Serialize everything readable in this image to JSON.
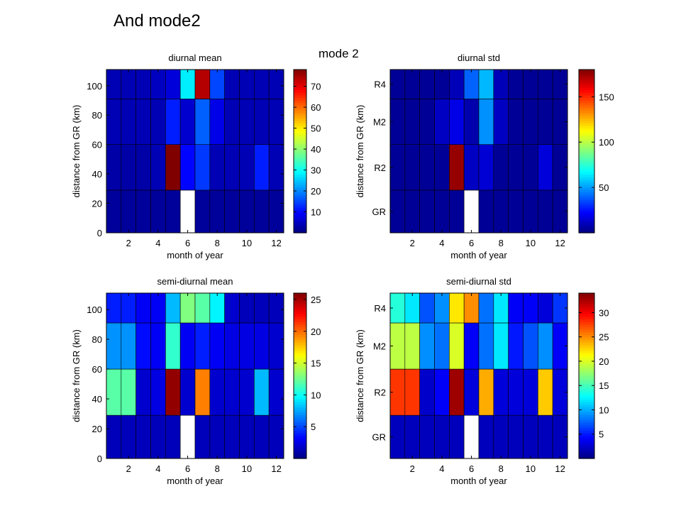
{
  "slide_title": "And mode2",
  "mode_label": "mode 2",
  "chart_data": [
    {
      "type": "heatmap",
      "title": "diurnal mean",
      "xlabel": "month of year",
      "ylabel": "distance from GR (km)",
      "x_ticks": [
        2,
        4,
        6,
        8,
        10,
        12
      ],
      "y_ticks": [
        "0",
        "20",
        "40",
        "60",
        "80",
        "100"
      ],
      "colorbar_ticks": [
        10,
        20,
        30,
        40,
        50,
        60,
        70
      ],
      "colorbar_range": [
        0,
        78
      ],
      "rows": [
        {
          "y0": 0,
          "y1": 29,
          "values": [
            2,
            2,
            2,
            2,
            2,
            null,
            2,
            2,
            2,
            2,
            2,
            2
          ]
        },
        {
          "y0": 29,
          "y1": 60,
          "values": [
            3,
            3,
            3,
            4,
            78,
            10,
            14,
            4,
            4,
            4,
            12,
            4
          ]
        },
        {
          "y0": 60,
          "y1": 91,
          "values": [
            4,
            4,
            4,
            4,
            12,
            6,
            17,
            8,
            4,
            4,
            4,
            4
          ]
        },
        {
          "y0": 91,
          "y1": 111,
          "values": [
            4,
            4,
            4,
            5,
            7,
            28,
            74,
            15,
            4,
            4,
            4,
            4
          ]
        }
      ]
    },
    {
      "type": "heatmap",
      "title": "diurnal std",
      "xlabel": "month of year",
      "ylabel": "distance from GR (km)",
      "x_ticks": [
        2,
        4,
        6,
        8,
        10,
        12
      ],
      "y_ticks": [
        "GR",
        "R2",
        "M2",
        "R4"
      ],
      "colorbar_ticks": [
        50,
        100,
        150
      ],
      "colorbar_range": [
        0,
        180
      ],
      "rows": [
        {
          "y0": 0,
          "y1": 29,
          "values": [
            4,
            4,
            4,
            4,
            4,
            null,
            4,
            4,
            4,
            4,
            4,
            4
          ]
        },
        {
          "y0": 29,
          "y1": 60,
          "values": [
            4,
            4,
            4,
            4,
            176,
            12,
            15,
            4,
            4,
            4,
            16,
            4
          ]
        },
        {
          "y0": 60,
          "y1": 91,
          "values": [
            4,
            4,
            4,
            12,
            18,
            8,
            48,
            12,
            4,
            4,
            4,
            4
          ]
        },
        {
          "y0": 91,
          "y1": 111,
          "values": [
            4,
            4,
            4,
            4,
            10,
            40,
            55,
            10,
            4,
            4,
            4,
            4
          ]
        }
      ]
    },
    {
      "type": "heatmap",
      "title": "semi-diurnal mean",
      "xlabel": "month of year",
      "ylabel": "distance from GR (km)",
      "x_ticks": [
        2,
        4,
        6,
        8,
        10,
        12
      ],
      "y_ticks": [
        "0",
        "20",
        "40",
        "60",
        "80",
        "100"
      ],
      "colorbar_ticks": [
        5,
        10,
        15,
        20,
        25
      ],
      "colorbar_range": [
        0,
        26
      ],
      "rows": [
        {
          "y0": 0,
          "y1": 29,
          "values": [
            1.5,
            1.5,
            1.5,
            1.5,
            1.5,
            null,
            1.5,
            1.5,
            1.5,
            1.5,
            1.5,
            1.5
          ]
        },
        {
          "y0": 29,
          "y1": 60,
          "values": [
            12,
            12,
            2,
            2.5,
            25.5,
            2,
            19.5,
            2,
            2,
            2,
            8,
            2
          ]
        },
        {
          "y0": 60,
          "y1": 91,
          "values": [
            7,
            7,
            3.5,
            3,
            11,
            3,
            4,
            3,
            2.5,
            2.5,
            2.5,
            2
          ]
        },
        {
          "y0": 91,
          "y1": 111,
          "values": [
            4,
            4,
            3,
            3,
            8,
            13,
            12,
            9.5,
            2,
            1.5,
            1.5,
            1.5
          ]
        }
      ]
    },
    {
      "type": "heatmap",
      "title": "semi-diurnal std",
      "xlabel": "month of year",
      "ylabel": "distance from GR (km)",
      "x_ticks": [
        2,
        4,
        6,
        8,
        10,
        12
      ],
      "y_ticks": [
        "GR",
        "R2",
        "M2",
        "R4"
      ],
      "colorbar_ticks": [
        5,
        10,
        15,
        20,
        25,
        30
      ],
      "colorbar_range": [
        0,
        34
      ],
      "rows": [
        {
          "y0": 0,
          "y1": 29,
          "values": [
            2,
            2,
            2,
            2,
            2,
            null,
            2,
            2,
            2,
            2,
            2,
            2
          ]
        },
        {
          "y0": 29,
          "y1": 60,
          "values": [
            28,
            28,
            2.5,
            4,
            33,
            3,
            24,
            3,
            3,
            3,
            23,
            3
          ]
        },
        {
          "y0": 60,
          "y1": 91,
          "values": [
            19,
            19,
            9,
            8,
            20,
            4,
            8,
            12,
            5,
            7,
            9,
            4
          ]
        },
        {
          "y0": 91,
          "y1": 111,
          "values": [
            14,
            12,
            7,
            9,
            22,
            25,
            8,
            12,
            4,
            4,
            3,
            6
          ]
        }
      ]
    }
  ]
}
